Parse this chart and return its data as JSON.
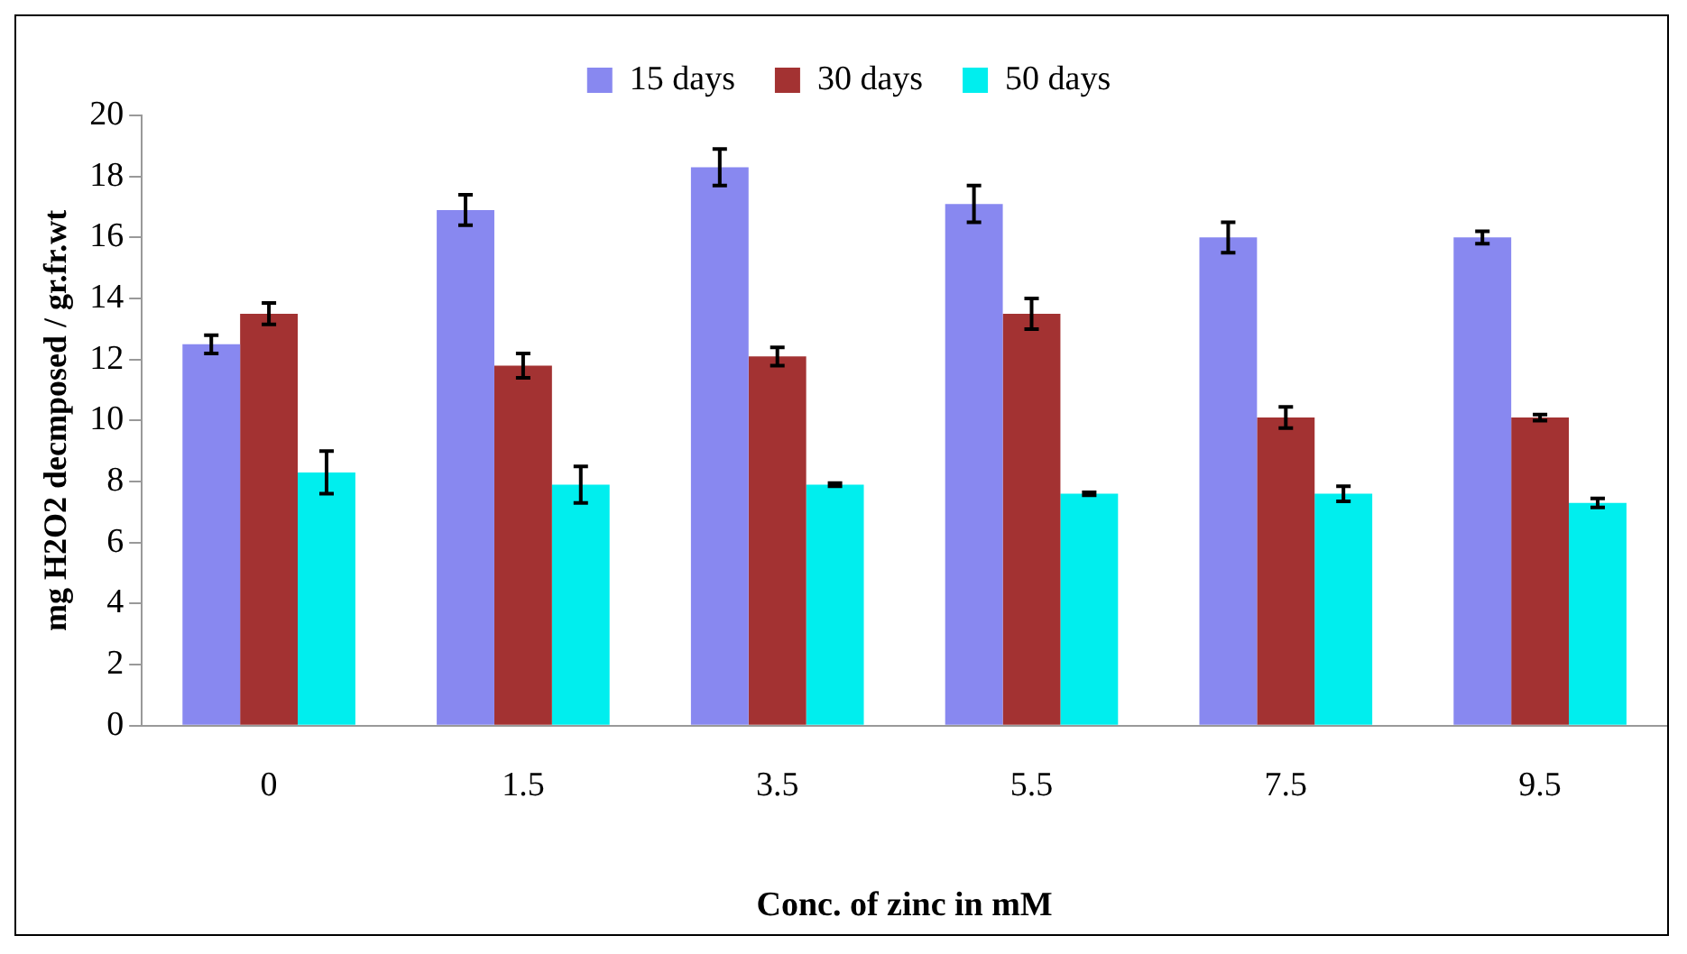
{
  "chart_data": {
    "type": "bar",
    "xlabel": "Conc. of zinc in mM",
    "ylabel": "mg H2O2 decmposed / gr.fr.wt",
    "categories": [
      "0",
      "1.5",
      "3.5",
      "5.5",
      "7.5",
      "9.5"
    ],
    "series": [
      {
        "name": "15 days",
        "color": "#8888f0",
        "values": [
          12.5,
          16.9,
          18.3,
          17.1,
          16.0,
          16.0
        ],
        "errors": [
          0.3,
          0.5,
          0.6,
          0.6,
          0.5,
          0.2
        ]
      },
      {
        "name": "30 days",
        "color": "#a33232",
        "values": [
          13.5,
          11.8,
          12.1,
          13.5,
          10.1,
          10.1
        ],
        "errors": [
          0.35,
          0.4,
          0.3,
          0.5,
          0.35,
          0.1
        ]
      },
      {
        "name": "50 days",
        "color": "#00eeee",
        "values": [
          8.3,
          7.9,
          7.9,
          7.6,
          7.6,
          7.3
        ],
        "errors": [
          0.7,
          0.6,
          0.05,
          0.05,
          0.25,
          0.15
        ]
      }
    ],
    "ylim": [
      0,
      20
    ],
    "yticks": [
      0,
      2,
      4,
      6,
      8,
      10,
      12,
      14,
      16,
      18,
      20
    ],
    "grid": false,
    "legend": "top"
  }
}
